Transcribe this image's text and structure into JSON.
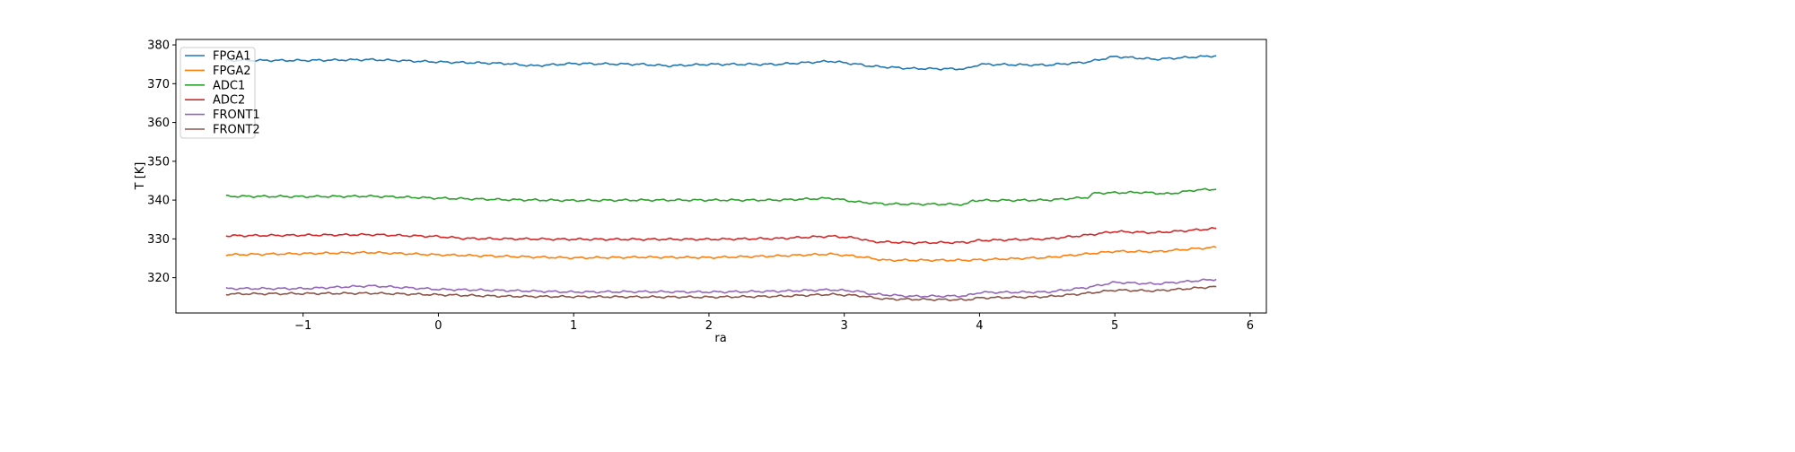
{
  "chart_data": {
    "type": "line",
    "title": "",
    "xlabel": "ra",
    "ylabel": "T [K]",
    "xlim": [
      -1.94,
      6.12
    ],
    "ylim": [
      310.9,
      381.4
    ],
    "xticks": [
      -1,
      0,
      1,
      2,
      3,
      4,
      5,
      6
    ],
    "yticks": [
      320,
      330,
      340,
      350,
      360,
      370,
      380
    ],
    "grid": false,
    "legend_position": "top-left",
    "series": [
      {
        "name": "FPGA1",
        "color": "#1f77b4",
        "x": [
          -1.57,
          -1,
          -0.5,
          0,
          0.5,
          0.7,
          1,
          1.5,
          1.7,
          2,
          2.5,
          2.9,
          3.1,
          3.2,
          3.5,
          3.9,
          4.0,
          4.5,
          4.8,
          5.0,
          5.3,
          5.75
        ],
        "y": [
          376,
          376,
          376.2,
          375.6,
          375.2,
          374.6,
          375.2,
          375,
          374.6,
          375,
          375,
          375.8,
          375,
          374.5,
          373.9,
          373.8,
          375,
          374.8,
          375.6,
          377,
          376.3,
          377.2
        ]
      },
      {
        "name": "FPGA2",
        "color": "#ff7f0e",
        "x": [
          -1.57,
          -0.5,
          0,
          0.5,
          1,
          1.5,
          2,
          2.5,
          2.9,
          3.1,
          3.3,
          3.9,
          4.5,
          5.0,
          5.3,
          5.6,
          5.75
        ],
        "y": [
          325.9,
          326.5,
          325.9,
          325.5,
          325.1,
          325.3,
          325.2,
          325.6,
          326.1,
          325.5,
          324.5,
          324.5,
          325.2,
          326.8,
          326.7,
          327.5,
          327.8
        ]
      },
      {
        "name": "ADC1",
        "color": "#2ca02c",
        "x": [
          -1.57,
          -1,
          -0.5,
          0,
          0.5,
          1,
          1.5,
          2,
          2.5,
          2.9,
          3.1,
          3.3,
          3.9,
          3.95,
          4.5,
          4.8,
          4.85,
          5.2,
          5.4,
          5.6,
          5.75
        ],
        "y": [
          341,
          340.9,
          341,
          340.5,
          340.1,
          339.9,
          340,
          340,
          340,
          340.5,
          339.5,
          339,
          338.9,
          339.9,
          340,
          340.7,
          341.8,
          342,
          341.6,
          342.6,
          342.8
        ]
      },
      {
        "name": "ADC2",
        "color": "#d62728",
        "x": [
          -1.57,
          -0.5,
          0,
          0.2,
          1,
          2,
          2.5,
          2.9,
          3.1,
          3.2,
          3.5,
          3.9,
          4.0,
          4.5,
          4.8,
          5.0,
          5.3,
          5.6,
          5.75
        ],
        "y": [
          330.8,
          331.1,
          330.6,
          330.1,
          329.9,
          329.9,
          330.1,
          330.7,
          330.2,
          329.3,
          329,
          329.1,
          329.6,
          330,
          331,
          331.9,
          331.6,
          332.3,
          332.7
        ]
      },
      {
        "name": "FRONT1",
        "color": "#9467bd",
        "x": [
          -1.57,
          -1,
          -0.5,
          0,
          0.5,
          1,
          1.5,
          2,
          2.5,
          2.9,
          3.1,
          3.2,
          3.5,
          3.9,
          4.0,
          4.5,
          4.8,
          5.0,
          5.3,
          5.75
        ],
        "y": [
          317.2,
          317.2,
          317.9,
          317,
          316.7,
          316.3,
          316.4,
          316.3,
          316.5,
          316.9,
          316.5,
          315.8,
          315.2,
          315.3,
          316.2,
          316.3,
          317.5,
          318.8,
          318.4,
          319.6
        ]
      },
      {
        "name": "FRONT2",
        "color": "#8c564b",
        "x": [
          -1.57,
          -0.5,
          0,
          0.5,
          1,
          2,
          2.5,
          2.9,
          3.1,
          3.3,
          3.9,
          4.0,
          4.5,
          4.8,
          5.0,
          5.3,
          5.75
        ],
        "y": [
          315.8,
          316,
          315.6,
          315.2,
          315.1,
          315,
          315.2,
          315.7,
          315.4,
          314.5,
          314.3,
          314.8,
          315.1,
          316,
          316.8,
          316.6,
          317.7
        ]
      }
    ]
  }
}
